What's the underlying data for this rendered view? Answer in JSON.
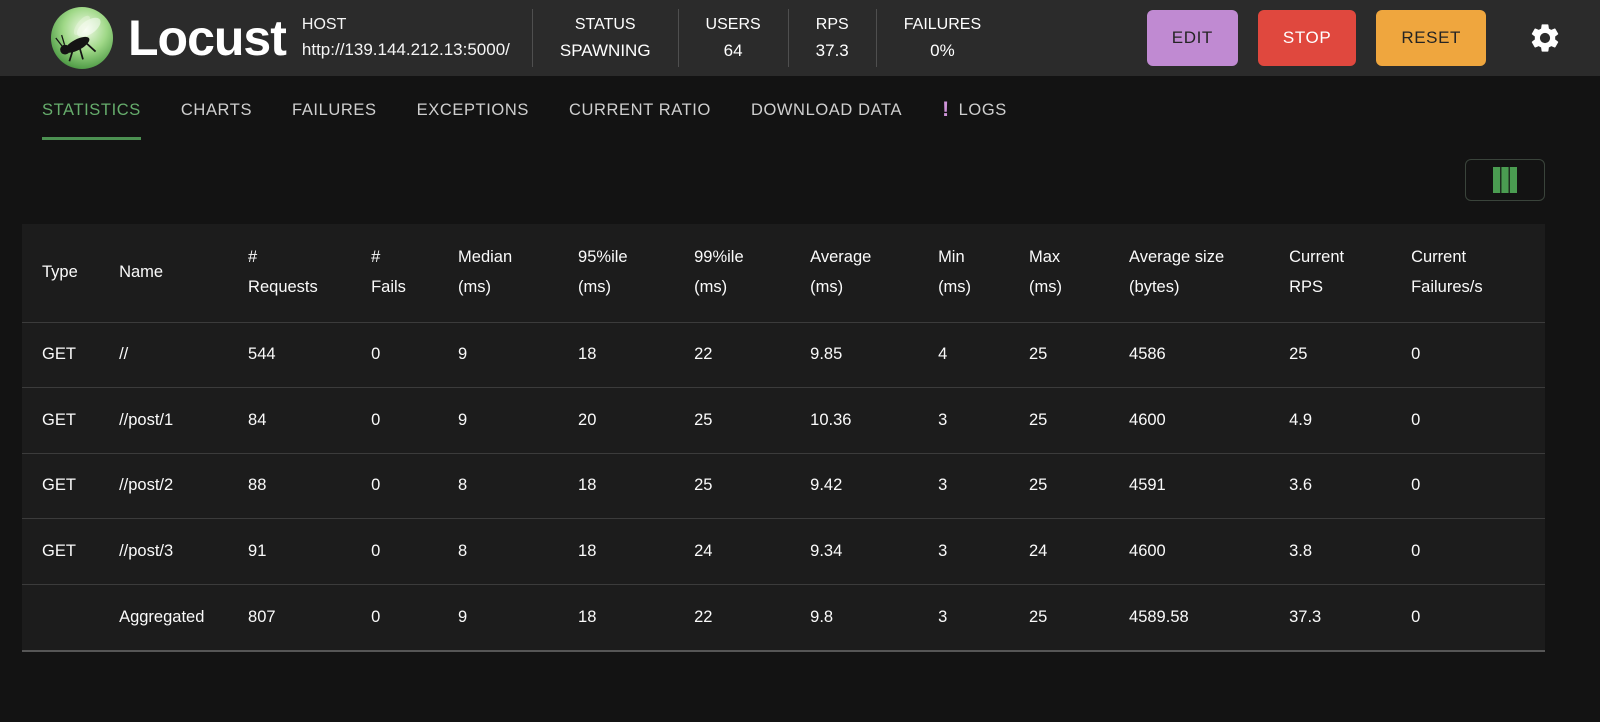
{
  "app": {
    "name": "Locust"
  },
  "header": {
    "host": {
      "label": "HOST",
      "value": "http://139.144.212.13:5000/"
    },
    "stats": [
      {
        "label": "STATUS",
        "value": "SPAWNING"
      },
      {
        "label": "USERS",
        "value": "64"
      },
      {
        "label": "RPS",
        "value": "37.3"
      },
      {
        "label": "FAILURES",
        "value": "0%"
      }
    ],
    "buttons": {
      "edit": "EDIT",
      "stop": "STOP",
      "reset": "RESET"
    }
  },
  "tabs": [
    {
      "label": "STATISTICS",
      "active": true
    },
    {
      "label": "CHARTS"
    },
    {
      "label": "FAILURES"
    },
    {
      "label": "EXCEPTIONS"
    },
    {
      "label": "CURRENT RATIO"
    },
    {
      "label": "DOWNLOAD DATA"
    },
    {
      "label": "LOGS",
      "alert": "!"
    }
  ],
  "table": {
    "columns": [
      {
        "line1": "Type",
        "line2": ""
      },
      {
        "line1": "Name",
        "line2": ""
      },
      {
        "line1": "#",
        "line2": "Requests"
      },
      {
        "line1": "#",
        "line2": "Fails"
      },
      {
        "line1": "Median",
        "line2": "(ms)"
      },
      {
        "line1": "95%ile",
        "line2": "(ms)"
      },
      {
        "line1": "99%ile",
        "line2": "(ms)"
      },
      {
        "line1": "Average",
        "line2": "(ms)"
      },
      {
        "line1": "Min",
        "line2": "(ms)"
      },
      {
        "line1": "Max",
        "line2": "(ms)"
      },
      {
        "line1": "Average size",
        "line2": "(bytes)"
      },
      {
        "line1": "Current",
        "line2": "RPS"
      },
      {
        "line1": "Current",
        "line2": "Failures/s"
      }
    ],
    "rows": [
      [
        "GET",
        "//",
        "544",
        "0",
        "9",
        "18",
        "22",
        "9.85",
        "4",
        "25",
        "4586",
        "25",
        "0"
      ],
      [
        "GET",
        "//post/1",
        "84",
        "0",
        "9",
        "20",
        "25",
        "10.36",
        "3",
        "25",
        "4600",
        "4.9",
        "0"
      ],
      [
        "GET",
        "//post/2",
        "88",
        "0",
        "8",
        "18",
        "25",
        "9.42",
        "3",
        "25",
        "4591",
        "3.6",
        "0"
      ],
      [
        "GET",
        "//post/3",
        "91",
        "0",
        "8",
        "18",
        "24",
        "9.34",
        "3",
        "24",
        "4600",
        "3.8",
        "0"
      ],
      [
        "",
        "Aggregated",
        "807",
        "0",
        "9",
        "18",
        "22",
        "9.8",
        "3",
        "25",
        "4589.58",
        "37.3",
        "0"
      ]
    ]
  },
  "colors": {
    "accent_green": "#66ad6c",
    "edit_button": "#c08ad2",
    "stop_button": "#e0483e",
    "reset_button": "#efa63e",
    "logs_alert": "#ce93d8",
    "header_bg": "#2b2b2b",
    "page_bg": "#131313",
    "panel_bg": "#1c1c1c"
  }
}
